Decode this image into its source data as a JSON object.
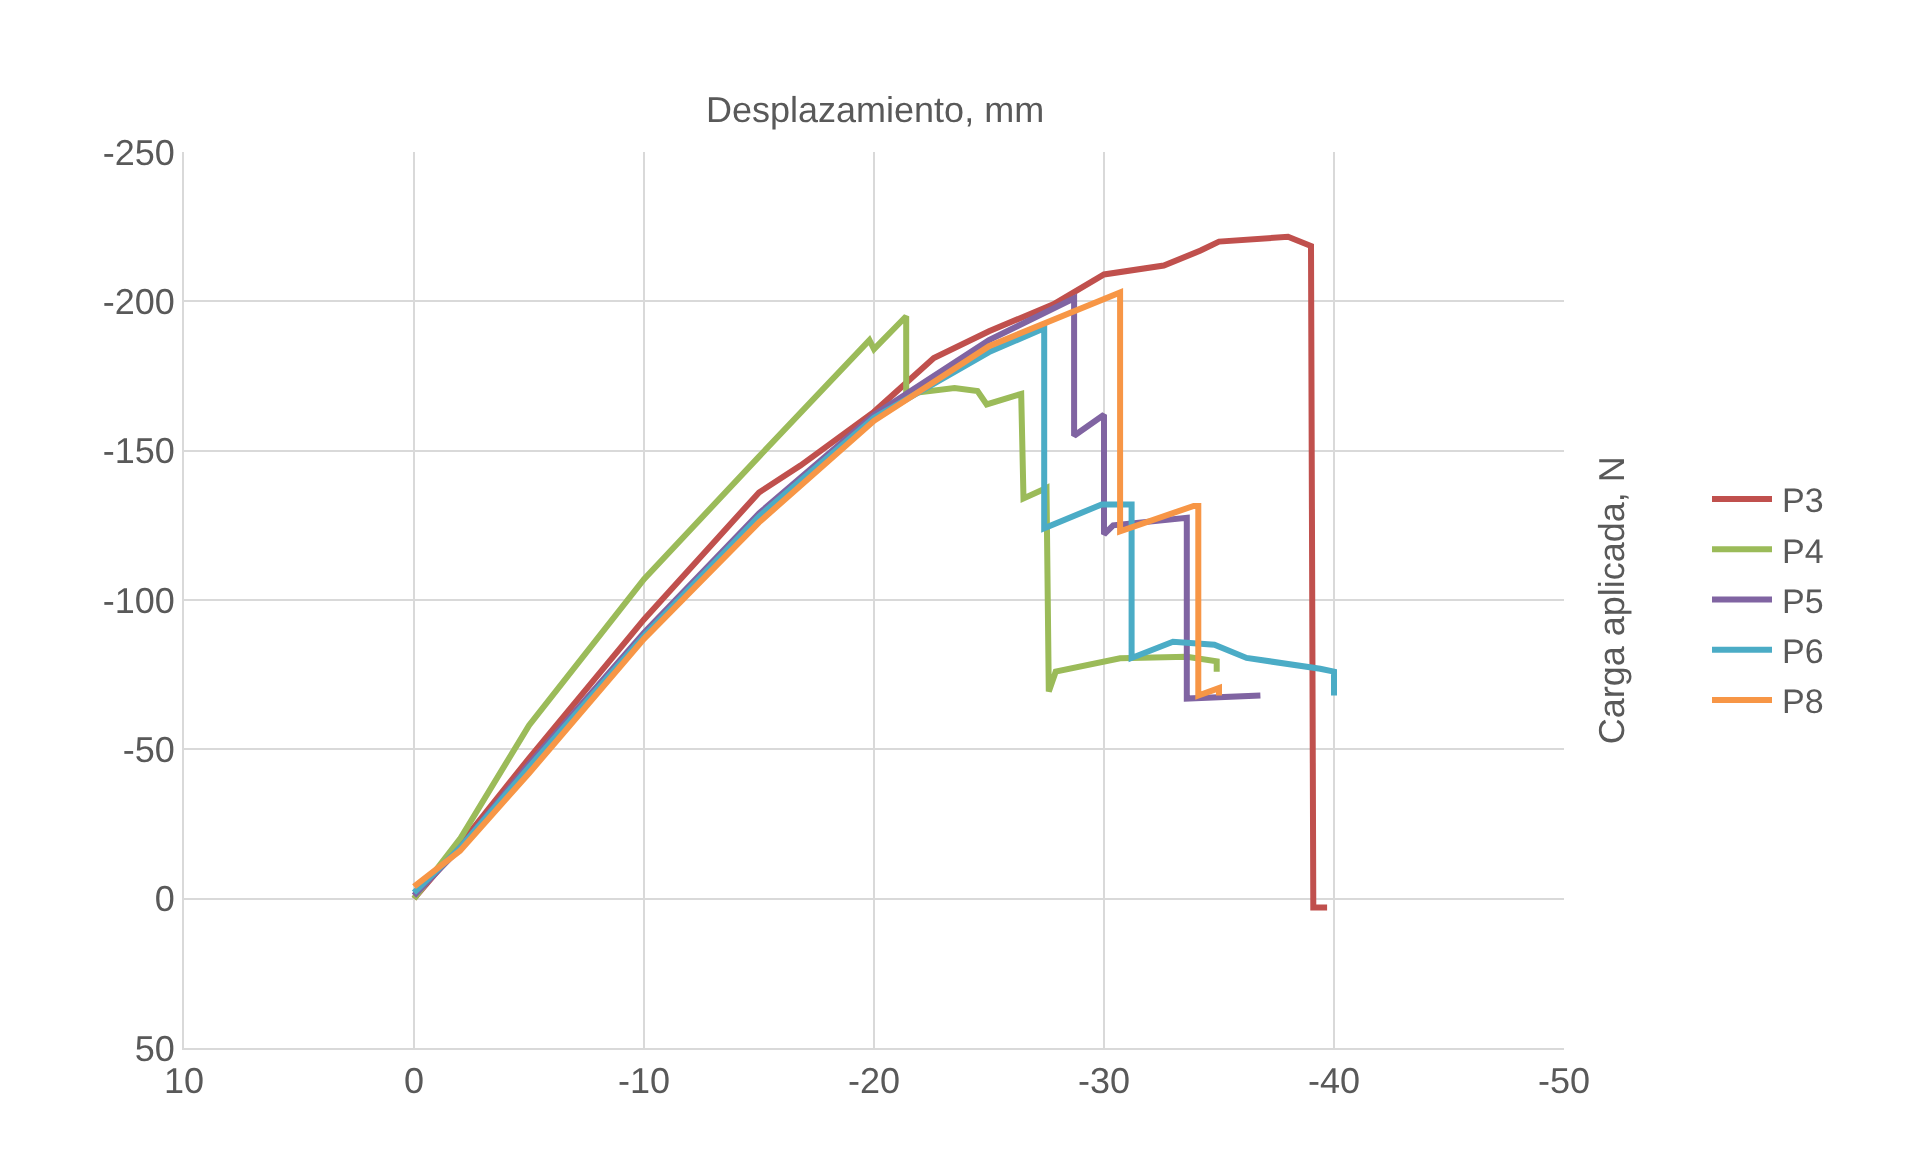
{
  "chart_data": {
    "type": "line",
    "xlabel": "Desplazamiento, mm",
    "ylabel": "Carga aplicada, N",
    "xlim": [
      10,
      -50
    ],
    "xticks": [
      10,
      0,
      -10,
      -20,
      -30,
      -40,
      -50
    ],
    "ylim": [
      50,
      -250
    ],
    "yticks": [
      50,
      0,
      -50,
      -100,
      -150,
      -200,
      -250
    ],
    "grid": true,
    "legend": "right",
    "marker": "none",
    "line_style": "solid",
    "series": [
      {
        "name": "P3",
        "color": "#c0504d",
        "x": [
          0,
          -2,
          -5,
          -10,
          -15,
          -16.8,
          -20,
          -22.6,
          -25,
          -27.8,
          -30,
          -32.6,
          -34.2,
          -35,
          -38,
          -39,
          -39.1,
          -39.7
        ],
        "values": [
          0,
          -18,
          -47,
          -93.5,
          -136,
          -145,
          -163,
          -181,
          -190,
          -199,
          -209,
          -212,
          -217,
          -220,
          -221.6,
          -218.5,
          3,
          3
        ]
      },
      {
        "name": "P4",
        "color": "#9bbb59",
        "x": [
          0,
          -2,
          -5,
          -10,
          -15,
          -19.8,
          -20,
          -21.4,
          -21.4,
          -23.5,
          -24.5,
          -24.9,
          -26.4,
          -26.5,
          -27.5,
          -27.6,
          -27.9,
          -30.7,
          -33.6,
          -34.9,
          -34.9
        ],
        "values": [
          0,
          -20,
          -58,
          -107,
          -148,
          -187,
          -184,
          -195,
          -169,
          -171,
          -170,
          -165.5,
          -169,
          -134,
          -137.5,
          -69.4,
          -76,
          -80.5,
          -81,
          -79.5,
          -76
        ]
      },
      {
        "name": "P5",
        "color": "#8064a2",
        "x": [
          0,
          -2,
          -5,
          -10,
          -15,
          -20,
          -25,
          -28.7,
          -28.7,
          -30,
          -30,
          -30.4,
          -33.6,
          -33.6,
          -36.8
        ],
        "values": [
          -1,
          -17,
          -45,
          -89,
          -129,
          -162,
          -187,
          -201,
          -155,
          -162,
          -122,
          -125,
          -127.5,
          -67,
          -68
        ]
      },
      {
        "name": "P6",
        "color": "#4bacc6",
        "x": [
          0,
          -2,
          -5,
          -10,
          -15,
          -20,
          -25,
          -27.4,
          -27.4,
          -29.9,
          -31.2,
          -31.2,
          -33,
          -34.8,
          -36.2,
          -39.4,
          -40,
          -40
        ],
        "values": [
          -2,
          -17,
          -44,
          -88,
          -128,
          -161,
          -183,
          -191,
          -124,
          -132,
          -132,
          -80.6,
          -86,
          -85,
          -80.6,
          -77,
          -76,
          -68
        ]
      },
      {
        "name": "P8",
        "color": "#f79646",
        "x": [
          0,
          -2,
          -5,
          -10,
          -15,
          -20,
          -25,
          -30.7,
          -30.7,
          -33.9,
          -34.1,
          -34.1,
          -35,
          -35
        ],
        "values": [
          -4,
          -16,
          -42,
          -87,
          -126,
          -160,
          -185,
          -203,
          -123,
          -131.5,
          -131.5,
          -68,
          -70.5,
          -68
        ]
      }
    ]
  }
}
